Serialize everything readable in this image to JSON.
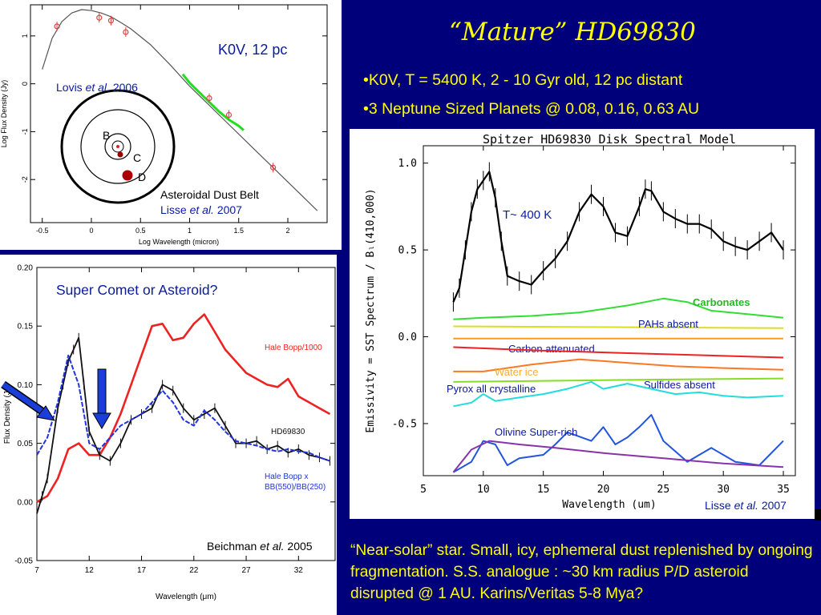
{
  "slide": {
    "title": "“Mature” HD69830",
    "bullets": [
      "•K0V, T = 5400 K, 2 - 10 Gyr old, 12 pc distant",
      "•3 Neptune Sized Planets @ 0.08, 0.16, 0.63 AU"
    ],
    "footer": "“Near-solar” star. Small, icy, ephemeral dust replenished by ongoing fragmentation. S.S. analogue : ~30 km radius P/D asteroid disrupted @ 1 AU. Karins/Veritas 5-8 Mya?"
  },
  "colors": {
    "background": "#00007a",
    "slide_text": "#ffff00",
    "arrow": "#1a3fd8"
  },
  "chart_data": [
    {
      "type": "line",
      "id": "sed",
      "xlabel": "Log Wavelength (micron)",
      "ylabel": "Log Flux Density (Jy)",
      "xlim": [
        -0.62,
        2.4
      ],
      "ylim": [
        -2.9,
        1.65
      ],
      "xticks": [
        "-0.5",
        "0",
        "0.5",
        "1",
        "1.5",
        "2"
      ],
      "xtick_values": [
        -0.5,
        0,
        0.5,
        1,
        1.5,
        2
      ],
      "yticks": [
        "-2",
        "-1",
        "0",
        "1"
      ],
      "ytick_values": [
        -2,
        -1,
        0,
        1
      ],
      "labels": {
        "star": "K0V, 12 pc",
        "lovis_prefix": "Lovis ",
        "lovis_italic": "et al.",
        "lovis_year": " 2006",
        "belt": "Asteroidal Dust Belt",
        "lisse_prefix": "Lisse ",
        "lisse_italic": "et al.",
        "lisse_year": " 2007",
        "orbit_b": "B",
        "orbit_c": "C",
        "orbit_d": "D"
      },
      "series": [
        {
          "name": "photosphere",
          "color": "#555555",
          "x": [
            -0.5,
            -0.4,
            -0.3,
            -0.2,
            -0.1,
            0.0,
            0.1,
            0.2,
            0.3,
            0.4,
            0.6,
            0.8,
            1.0,
            1.2,
            1.4,
            1.6,
            1.8,
            2.0,
            2.2,
            2.3
          ],
          "y": [
            0.3,
            0.95,
            1.3,
            1.48,
            1.55,
            1.53,
            1.48,
            1.4,
            1.28,
            1.15,
            0.82,
            0.4,
            -0.05,
            -0.45,
            -0.85,
            -1.25,
            -1.65,
            -2.05,
            -2.45,
            -2.65
          ]
        },
        {
          "name": "spitzer_irs",
          "color": "#22dd22",
          "x": [
            0.93,
            1.0,
            1.1,
            1.2,
            1.3,
            1.4,
            1.5,
            1.55
          ],
          "y": [
            0.2,
            0.02,
            -0.18,
            -0.38,
            -0.58,
            -0.75,
            -0.88,
            -0.97
          ]
        },
        {
          "name": "photometry",
          "color": "#dd4444",
          "x": [
            -0.35,
            0.08,
            0.2,
            0.35,
            1.2,
            1.4,
            1.85
          ],
          "y": [
            1.2,
            1.38,
            1.32,
            1.08,
            -0.3,
            -0.65,
            -1.75
          ]
        }
      ]
    },
    {
      "type": "line",
      "id": "comet",
      "title": "Super Comet or Asteroid?",
      "xlabel": "Wavelength (μm)",
      "ylabel": "Flux Density (Jy)",
      "xlim": [
        7,
        35.5
      ],
      "ylim": [
        -0.05,
        0.2
      ],
      "xticks": [
        "7",
        "12",
        "17",
        "22",
        "27",
        "32"
      ],
      "xtick_values": [
        7,
        12,
        17,
        22,
        27,
        32
      ],
      "yticks": [
        "0.20",
        "0.15",
        "0.10",
        "0.05",
        "0.00",
        "-0.05"
      ],
      "ytick_values": [
        0.2,
        0.15,
        0.1,
        0.05,
        0.0,
        -0.05
      ],
      "credit_prefix": "Beichman ",
      "credit_italic": "et al.",
      "credit_year": " 2005",
      "series": [
        {
          "name": "Hale Bopp/1000",
          "label_lines": [
            "Hale Bopp/1000"
          ],
          "color": "#ee2222",
          "x": [
            7,
            8,
            9,
            10,
            11,
            12,
            13,
            14,
            15,
            16,
            17,
            18,
            19,
            20,
            21,
            22,
            23,
            24,
            25,
            26,
            27,
            28,
            29,
            30,
            31,
            32,
            33,
            34,
            35
          ],
          "y": [
            0.0,
            0.005,
            0.02,
            0.045,
            0.05,
            0.04,
            0.04,
            0.055,
            0.075,
            0.1,
            0.125,
            0.15,
            0.152,
            0.138,
            0.14,
            0.152,
            0.16,
            0.145,
            0.13,
            0.12,
            0.11,
            0.105,
            0.1,
            0.098,
            0.105,
            0.09,
            0.085,
            0.08,
            0.075
          ]
        },
        {
          "name": "HD69830",
          "label_lines": [
            "HD69830"
          ],
          "color": "#111111",
          "x": [
            7,
            7.5,
            8,
            9,
            9.5,
            10,
            10.5,
            11,
            11.5,
            12,
            13,
            14,
            15,
            16,
            17,
            18,
            19,
            20,
            21,
            22,
            23,
            24,
            25,
            26,
            27,
            28,
            29,
            30,
            31,
            32,
            33,
            34,
            35
          ],
          "y": [
            -0.01,
            0.005,
            0.02,
            0.08,
            0.1,
            0.12,
            0.13,
            0.14,
            0.1,
            0.06,
            0.04,
            0.035,
            0.05,
            0.07,
            0.075,
            0.08,
            0.1,
            0.095,
            0.08,
            0.07,
            0.075,
            0.08,
            0.065,
            0.05,
            0.05,
            0.052,
            0.045,
            0.048,
            0.042,
            0.045,
            0.04,
            0.038,
            0.035
          ]
        },
        {
          "name": "Hale Bopp x BB(550)/BB(250)",
          "label_lines": [
            "Hale Bopp x",
            "BB(550)/BB(250)"
          ],
          "color": "#2233dd",
          "x": [
            7,
            8,
            9,
            10,
            11,
            12,
            13,
            14,
            15,
            16,
            17,
            18,
            19,
            20,
            21,
            22,
            23,
            24,
            25,
            26,
            27,
            28,
            29,
            30,
            31,
            32,
            33,
            34,
            35
          ],
          "y": [
            0.04,
            0.055,
            0.085,
            0.125,
            0.1,
            0.05,
            0.045,
            0.055,
            0.065,
            0.07,
            0.075,
            0.085,
            0.095,
            0.085,
            0.07,
            0.065,
            0.078,
            0.07,
            0.06,
            0.052,
            0.05,
            0.048,
            0.045,
            0.043,
            0.045,
            0.043,
            0.042,
            0.038,
            0.035
          ]
        }
      ]
    },
    {
      "type": "line",
      "id": "spectral_model",
      "title": "Spitzer HD69830 Disk Spectral Model",
      "xlabel": "Wavelength (um)",
      "ylabel": "Emissivity  = SST Spectrum / Bₗ(410,000)",
      "xlim": [
        5,
        36
      ],
      "ylim": [
        -0.8,
        1.1
      ],
      "xticks": [
        "5",
        "10",
        "15",
        "20",
        "25",
        "30",
        "35"
      ],
      "xtick_values": [
        5,
        10,
        15,
        20,
        25,
        30,
        35
      ],
      "yticks": [
        "1.0",
        "0.5",
        "0.0",
        "-0.5"
      ],
      "ytick_values": [
        1.0,
        0.5,
        0.0,
        -0.5
      ],
      "annotations": {
        "temperature": "T~ 400 K",
        "credit_prefix": "Lisse ",
        "credit_italic": "et al.",
        "credit_year": " 2007"
      },
      "series": [
        {
          "name": "SST spectrum",
          "color": "#000000",
          "x": [
            7.5,
            8,
            8.5,
            9,
            9.5,
            10,
            10.5,
            11,
            11.5,
            12,
            13,
            14,
            15,
            16,
            17,
            18,
            19,
            20,
            21,
            22,
            23,
            23.5,
            24,
            25,
            26,
            27,
            28,
            29,
            30,
            31,
            32,
            33,
            34,
            35
          ],
          "y": [
            0.2,
            0.28,
            0.5,
            0.72,
            0.85,
            0.9,
            0.95,
            0.8,
            0.55,
            0.35,
            0.32,
            0.3,
            0.38,
            0.45,
            0.55,
            0.72,
            0.82,
            0.75,
            0.6,
            0.58,
            0.75,
            0.85,
            0.84,
            0.72,
            0.68,
            0.65,
            0.65,
            0.62,
            0.55,
            0.52,
            0.5,
            0.55,
            0.6,
            0.5
          ]
        },
        {
          "name": "Carbonates",
          "label": "Carbonates",
          "color": "#33dd33",
          "x": [
            7.5,
            10,
            14,
            18,
            22,
            25,
            27,
            29,
            32,
            35
          ],
          "y": [
            0.1,
            0.11,
            0.12,
            0.14,
            0.18,
            0.22,
            0.2,
            0.15,
            0.13,
            0.11
          ]
        },
        {
          "name": "PAHs absent",
          "label": "PAHs absent",
          "color": "#dddd22",
          "x": [
            7.5,
            35
          ],
          "y": [
            0.06,
            0.05
          ]
        },
        {
          "name": "Carbon attenuated",
          "label": "Carbon attenuated",
          "color": "#ff9922",
          "x": [
            7.5,
            35
          ],
          "y": [
            -0.01,
            -0.01
          ]
        },
        {
          "name": "red continuum",
          "color": "#ee2222",
          "x": [
            7.5,
            15,
            25,
            35
          ],
          "y": [
            -0.06,
            -0.08,
            -0.1,
            -0.12
          ]
        },
        {
          "name": "Water ice",
          "label": "Water ice",
          "color": "#ff7722",
          "x": [
            7.5,
            10,
            14,
            18,
            22,
            26,
            30,
            35
          ],
          "y": [
            -0.2,
            -0.2,
            -0.16,
            -0.13,
            -0.15,
            -0.17,
            -0.18,
            -0.19
          ]
        },
        {
          "name": "Sulfides absent",
          "label": "Sulfides absent",
          "color": "#88dd22",
          "x": [
            7.5,
            20,
            35
          ],
          "y": [
            -0.26,
            -0.25,
            -0.24
          ]
        },
        {
          "name": "Pyrox all crystalline",
          "label": "Pyrox all crystalline",
          "color": "#22dddd",
          "x": [
            7.5,
            9,
            10,
            11,
            13,
            15,
            17,
            19,
            20,
            22,
            24,
            26,
            28,
            30,
            32,
            35
          ],
          "y": [
            -0.4,
            -0.38,
            -0.33,
            -0.37,
            -0.35,
            -0.33,
            -0.3,
            -0.26,
            -0.3,
            -0.27,
            -0.3,
            -0.33,
            -0.32,
            -0.34,
            -0.35,
            -0.34
          ]
        },
        {
          "name": "Olivine Super-rich",
          "label": "Olivine Super-rich",
          "color": "#2255dd",
          "x": [
            7.5,
            9,
            10,
            11,
            12,
            13,
            15,
            16,
            17,
            19,
            20,
            21,
            22,
            23,
            24,
            25,
            27,
            29,
            31,
            33,
            35
          ],
          "y": [
            -0.78,
            -0.72,
            -0.6,
            -0.62,
            -0.74,
            -0.7,
            -0.68,
            -0.62,
            -0.55,
            -0.6,
            -0.52,
            -0.62,
            -0.58,
            -0.52,
            -0.45,
            -0.6,
            -0.72,
            -0.64,
            -0.72,
            -0.74,
            -0.6
          ]
        },
        {
          "name": "purple continuum",
          "color": "#8833aa",
          "x": [
            7.5,
            9,
            10.5,
            13,
            16,
            20,
            25,
            30,
            35
          ],
          "y": [
            -0.78,
            -0.65,
            -0.6,
            -0.62,
            -0.64,
            -0.67,
            -0.7,
            -0.73,
            -0.75
          ]
        }
      ]
    }
  ]
}
